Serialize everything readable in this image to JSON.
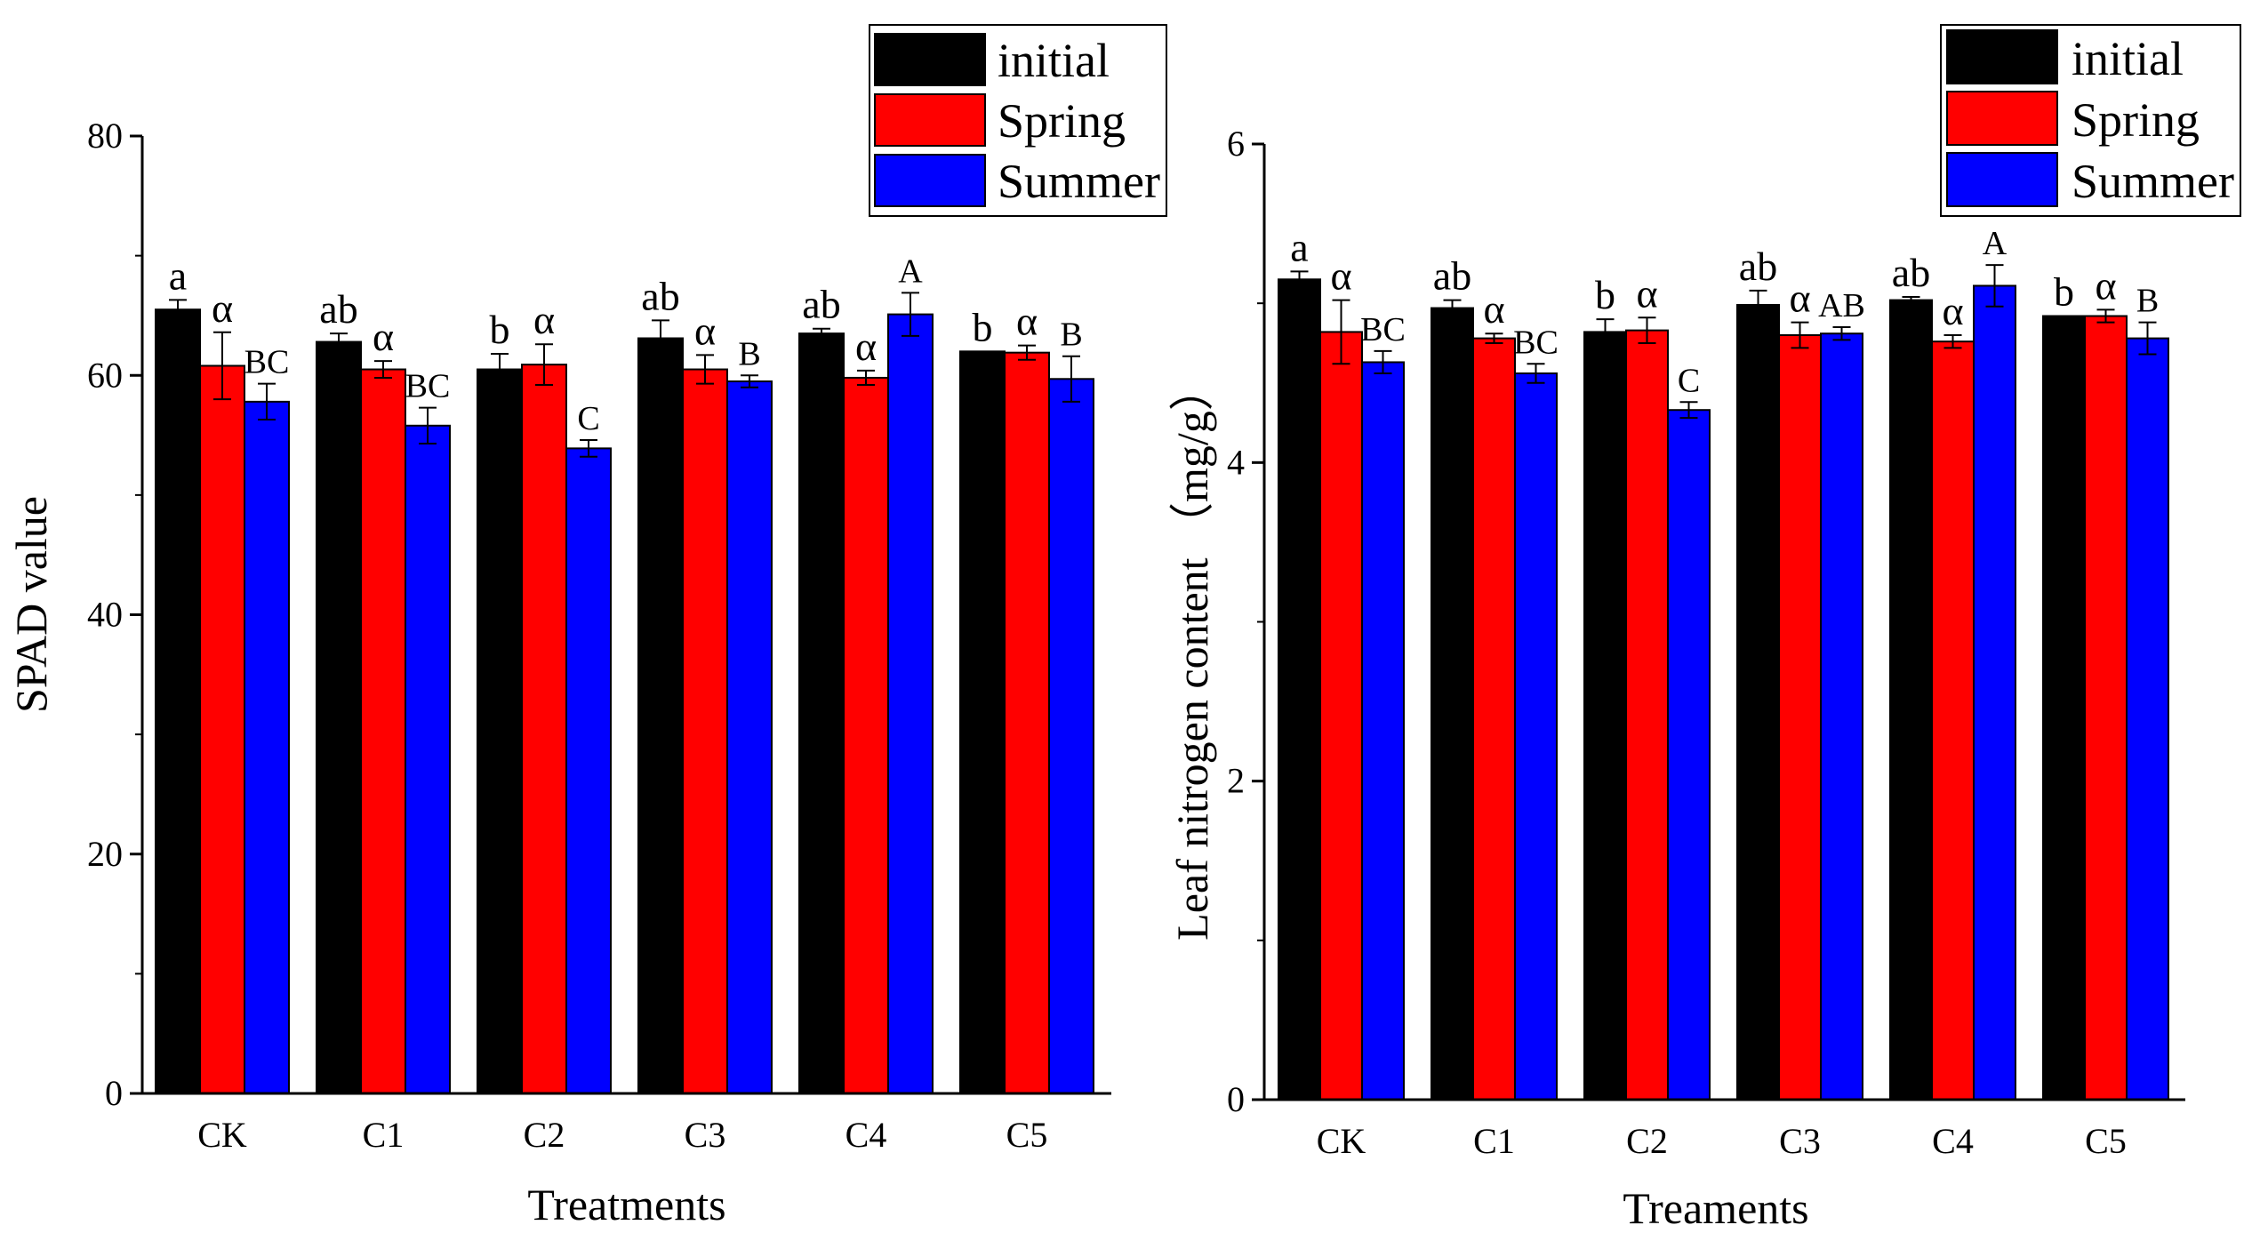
{
  "chart_data": [
    {
      "type": "bar",
      "xlabel": "Treatments",
      "ylabel": "SPAD value",
      "ylim": [
        0,
        80
      ],
      "yticks": [
        0,
        20,
        40,
        60,
        80
      ],
      "yticks_text": [
        "0",
        "20",
        "40",
        "60",
        "80"
      ],
      "categories": [
        "CK",
        "C1",
        "C2",
        "C3",
        "C4",
        "C5"
      ],
      "legend_position": "top-right",
      "series": [
        {
          "name": "initial",
          "color": "#000000",
          "values": [
            65.5,
            62.8,
            60.5,
            63.1,
            63.5,
            62.0
          ],
          "errors": [
            0.8,
            0.7,
            1.3,
            1.5,
            0.4,
            0.0
          ],
          "labels": [
            "a",
            "ab",
            "b",
            "ab",
            "ab",
            "b"
          ]
        },
        {
          "name": "Spring",
          "color": "#ff0000",
          "values": [
            60.8,
            60.5,
            60.9,
            60.5,
            59.8,
            61.9
          ],
          "errors": [
            2.8,
            0.7,
            1.7,
            1.2,
            0.6,
            0.6
          ],
          "labels": [
            "α",
            "α",
            "α",
            "α",
            "α",
            "α"
          ]
        },
        {
          "name": "Summer",
          "color": "#0000ff",
          "values": [
            57.8,
            55.8,
            53.9,
            59.5,
            65.1,
            59.7
          ],
          "errors": [
            1.5,
            1.5,
            0.7,
            0.5,
            1.8,
            1.9
          ],
          "labels": [
            "BC",
            "BC",
            "C",
            "B",
            "A",
            "B"
          ]
        }
      ]
    },
    {
      "type": "bar",
      "xlabel": "Treaments",
      "ylabel": "Leaf nitrogen content （mg/g）",
      "ylim": [
        0,
        6
      ],
      "yticks": [
        0,
        2,
        4,
        6
      ],
      "yticks_text": [
        "0",
        "2",
        "4",
        "6"
      ],
      "categories": [
        "CK",
        "C1",
        "C2",
        "C3",
        "C4",
        "C5"
      ],
      "legend_position": "top-right",
      "series": [
        {
          "name": "initial",
          "color": "#000000",
          "values": [
            5.15,
            4.97,
            4.82,
            4.99,
            5.02,
            4.92
          ],
          "errors": [
            0.05,
            0.05,
            0.08,
            0.09,
            0.02,
            0.0
          ],
          "labels": [
            "a",
            "ab",
            "b",
            "ab",
            "ab",
            "b"
          ]
        },
        {
          "name": "Spring",
          "color": "#ff0000",
          "values": [
            4.82,
            4.78,
            4.83,
            4.8,
            4.76,
            4.92
          ],
          "errors": [
            0.2,
            0.03,
            0.08,
            0.08,
            0.04,
            0.04
          ],
          "labels": [
            "α",
            "α",
            "α",
            "α",
            "α",
            "α"
          ]
        },
        {
          "name": "Summer",
          "color": "#0000ff",
          "values": [
            4.63,
            4.56,
            4.33,
            4.81,
            5.11,
            4.78
          ],
          "errors": [
            0.07,
            0.06,
            0.05,
            0.04,
            0.13,
            0.1
          ],
          "labels": [
            "BC",
            "BC",
            "C",
            "AB",
            "A",
            "B"
          ]
        }
      ]
    }
  ]
}
